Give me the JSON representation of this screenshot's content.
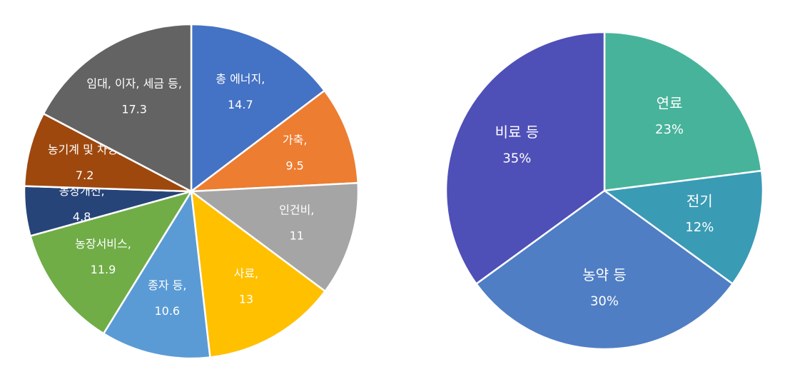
{
  "chart_data": [
    {
      "type": "pie",
      "categories": [
        "총 에너지,",
        "가축,",
        "인건비,",
        "사료,",
        "종자 등,",
        "농장서비스,",
        "농장개선,",
        "농기계 및 차량,",
        "임대, 이자, 세금 등,"
      ],
      "values": [
        14.7,
        9.5,
        11,
        13,
        10.6,
        11.9,
        4.8,
        7.2,
        17.3
      ],
      "colors": [
        "#4472c4",
        "#ed7d31",
        "#a5a5a5",
        "#ffc000",
        "#5b9bd5",
        "#70ad47",
        "#264478",
        "#9e480e",
        "#636363"
      ]
    },
    {
      "type": "pie",
      "categories": [
        "연료",
        "전기",
        "농약 등",
        "비료 등"
      ],
      "values": [
        23,
        12,
        30,
        35
      ],
      "value_labels": [
        "23%",
        "12%",
        "30%",
        "35%"
      ],
      "colors": [
        "#47b39a",
        "#3a9bb5",
        "#4f7ec4",
        "#4f4fb8"
      ]
    }
  ]
}
